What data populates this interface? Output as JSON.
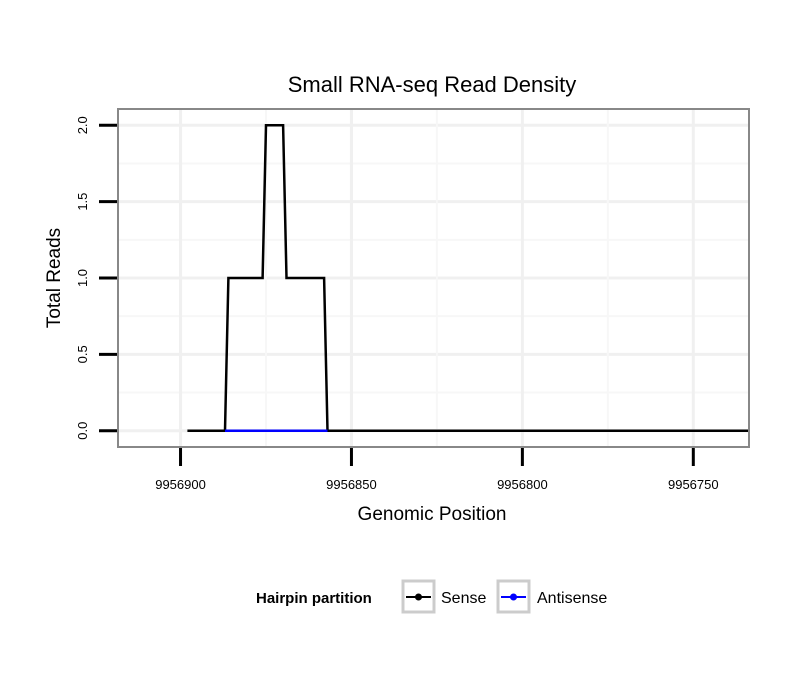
{
  "chart_data": {
    "type": "line",
    "title": "Small RNA-seq Read Density",
    "xlabel": "Genomic Position",
    "ylabel": "Total Reads",
    "x_reversed": true,
    "xlim": [
      9956918,
      9956734
    ],
    "ylim": [
      -0.1,
      2.1
    ],
    "grid": true,
    "x_ticks": [
      9956900,
      9956850,
      9956800,
      9956750
    ],
    "x_tick_labels": [
      "9956900",
      "9956850",
      "9956800",
      "9956750"
    ],
    "y_ticks": [
      0.0,
      0.5,
      1.0,
      1.5,
      2.0
    ],
    "y_tick_labels": [
      "0.0",
      "0.5",
      "1.0",
      "1.5",
      "2.0"
    ],
    "series": [
      {
        "name": "Sense",
        "color": "#000000",
        "points": [
          [
            9956898,
            0
          ],
          [
            9956887,
            0
          ],
          [
            9956886,
            1
          ],
          [
            9956876,
            1
          ],
          [
            9956875,
            2
          ],
          [
            9956870,
            2
          ],
          [
            9956869,
            1
          ],
          [
            9956858,
            1
          ],
          [
            9956857,
            0
          ],
          [
            9956734,
            0
          ]
        ]
      },
      {
        "name": "Antisense",
        "color": "#0000ff",
        "points": [
          [
            9956887,
            0
          ],
          [
            9956857,
            0
          ]
        ]
      }
    ],
    "legend": {
      "title": "Hairpin partition",
      "position": "bottom",
      "entries": [
        "Sense",
        "Antisense"
      ]
    }
  }
}
